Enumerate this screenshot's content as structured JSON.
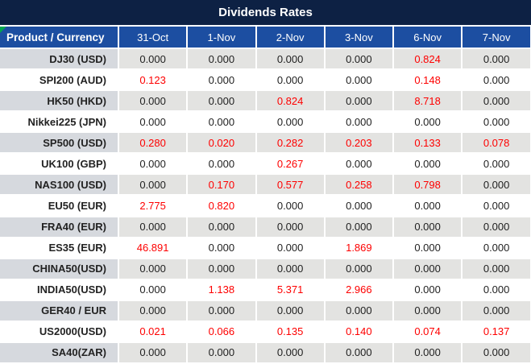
{
  "title": "Dividends Rates",
  "colors": {
    "title_bar_bg": "#0d2144",
    "header_bg": "#1c4ea1",
    "alt_row_product_bg": "#d6d9de",
    "alt_row_value_bg": "#e3e3e1",
    "value_text": "#1f1f1f",
    "nonzero_value_text": "#fe0000",
    "header_text": "#ffffff",
    "corner_marker_green": "#00a550"
  },
  "table": {
    "product_header": "Product / Currency",
    "date_headers": [
      "31-Oct",
      "1-Nov",
      "2-Nov",
      "3-Nov",
      "6-Nov",
      "7-Nov"
    ],
    "rows": [
      {
        "product": "DJ30 (USD)",
        "values": [
          "0.000",
          "0.000",
          "0.000",
          "0.000",
          "0.824",
          "0.000"
        ],
        "red": [
          false,
          false,
          false,
          false,
          true,
          false
        ]
      },
      {
        "product": "SPI200 (AUD)",
        "values": [
          "0.123",
          "0.000",
          "0.000",
          "0.000",
          "0.148",
          "0.000"
        ],
        "red": [
          true,
          false,
          false,
          false,
          true,
          false
        ]
      },
      {
        "product": "HK50 (HKD)",
        "values": [
          "0.000",
          "0.000",
          "0.824",
          "0.000",
          "8.718",
          "0.000"
        ],
        "red": [
          false,
          false,
          true,
          false,
          true,
          false
        ]
      },
      {
        "product": "Nikkei225 (JPN)",
        "values": [
          "0.000",
          "0.000",
          "0.000",
          "0.000",
          "0.000",
          "0.000"
        ],
        "red": [
          false,
          false,
          false,
          false,
          false,
          false
        ]
      },
      {
        "product": "SP500 (USD)",
        "values": [
          "0.280",
          "0.020",
          "0.282",
          "0.203",
          "0.133",
          "0.078"
        ],
        "red": [
          true,
          true,
          true,
          true,
          true,
          true
        ]
      },
      {
        "product": "UK100 (GBP)",
        "values": [
          "0.000",
          "0.000",
          "0.267",
          "0.000",
          "0.000",
          "0.000"
        ],
        "red": [
          false,
          false,
          true,
          false,
          false,
          false
        ]
      },
      {
        "product": "NAS100 (USD)",
        "values": [
          "0.000",
          "0.170",
          "0.577",
          "0.258",
          "0.798",
          "0.000"
        ],
        "red": [
          false,
          true,
          true,
          true,
          true,
          false
        ]
      },
      {
        "product": "EU50 (EUR)",
        "values": [
          "2.775",
          "0.820",
          "0.000",
          "0.000",
          "0.000",
          "0.000"
        ],
        "red": [
          true,
          true,
          false,
          false,
          false,
          false
        ]
      },
      {
        "product": "FRA40 (EUR)",
        "values": [
          "0.000",
          "0.000",
          "0.000",
          "0.000",
          "0.000",
          "0.000"
        ],
        "red": [
          false,
          false,
          false,
          false,
          false,
          false
        ]
      },
      {
        "product": "ES35 (EUR)",
        "values": [
          "46.891",
          "0.000",
          "0.000",
          "1.869",
          "0.000",
          "0.000"
        ],
        "red": [
          true,
          false,
          false,
          true,
          false,
          false
        ]
      },
      {
        "product": "CHINA50(USD)",
        "values": [
          "0.000",
          "0.000",
          "0.000",
          "0.000",
          "0.000",
          "0.000"
        ],
        "red": [
          false,
          false,
          false,
          false,
          false,
          false
        ]
      },
      {
        "product": "INDIA50(USD)",
        "values": [
          "0.000",
          "1.138",
          "5.371",
          "2.966",
          "0.000",
          "0.000"
        ],
        "red": [
          false,
          true,
          true,
          true,
          false,
          false
        ]
      },
      {
        "product": "GER40 / EUR",
        "values": [
          "0.000",
          "0.000",
          "0.000",
          "0.000",
          "0.000",
          "0.000"
        ],
        "red": [
          false,
          false,
          false,
          false,
          false,
          false
        ]
      },
      {
        "product": "US2000(USD)",
        "values": [
          "0.021",
          "0.066",
          "0.135",
          "0.140",
          "0.074",
          "0.137"
        ],
        "red": [
          true,
          true,
          true,
          true,
          true,
          true
        ]
      },
      {
        "product": "SA40(ZAR)",
        "values": [
          "0.000",
          "0.000",
          "0.000",
          "0.000",
          "0.000",
          "0.000"
        ],
        "red": [
          false,
          false,
          false,
          false,
          false,
          false
        ]
      }
    ]
  }
}
